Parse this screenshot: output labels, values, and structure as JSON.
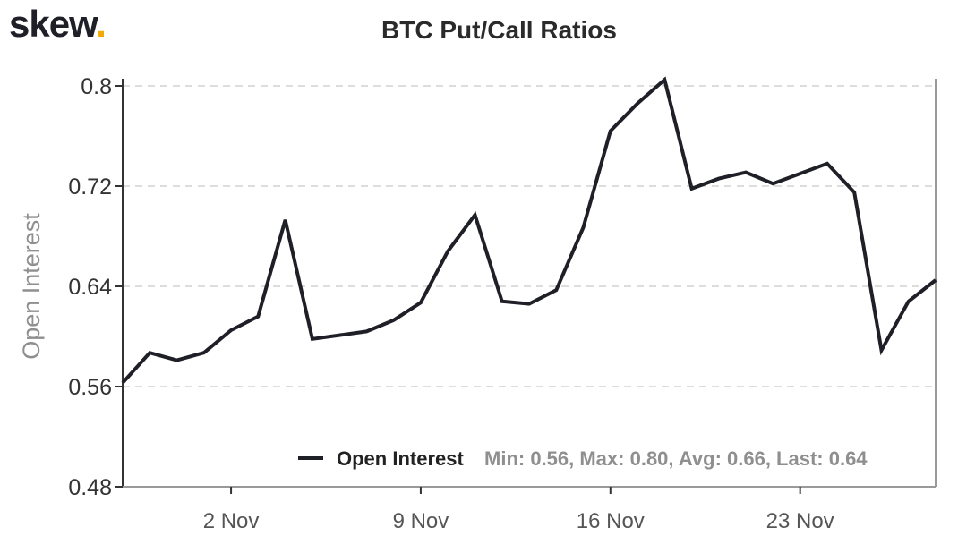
{
  "brand": {
    "name": "skew",
    "dot": "."
  },
  "chart_data": {
    "type": "line",
    "title": "BTC Put/Call Ratios",
    "xlabel": "",
    "ylabel": "Open Interest",
    "ylim": [
      0.48,
      0.8
    ],
    "yticks": [
      "0.8",
      "0.72",
      "0.64",
      "0.56",
      "0.48"
    ],
    "ytick_values": [
      0.8,
      0.72,
      0.64,
      0.56,
      0.48
    ],
    "xticks": [
      "2 Nov",
      "9 Nov",
      "16 Nov",
      "23 Nov"
    ],
    "xtick_dates": [
      "2020-11-02",
      "2020-11-09",
      "2020-11-16",
      "2020-11-23"
    ],
    "xlim": [
      "2020-10-29",
      "2020-11-28"
    ],
    "grid": "horizontal dashed",
    "line_color": "#1f1f28",
    "series": [
      {
        "name": "Open Interest",
        "x": [
          "2020-10-29",
          "2020-10-30",
          "2020-10-31",
          "2020-11-01",
          "2020-11-02",
          "2020-11-03",
          "2020-11-04",
          "2020-11-05",
          "2020-11-06",
          "2020-11-07",
          "2020-11-08",
          "2020-11-09",
          "2020-11-10",
          "2020-11-11",
          "2020-11-12",
          "2020-11-13",
          "2020-11-14",
          "2020-11-15",
          "2020-11-16",
          "2020-11-17",
          "2020-11-18",
          "2020-11-19",
          "2020-11-20",
          "2020-11-21",
          "2020-11-22",
          "2020-11-23",
          "2020-11-24",
          "2020-11-25",
          "2020-11-26",
          "2020-11-27",
          "2020-11-28"
        ],
        "values": [
          0.563,
          0.587,
          0.581,
          0.587,
          0.605,
          0.616,
          0.693,
          0.598,
          0.601,
          0.604,
          0.613,
          0.627,
          0.668,
          0.697,
          0.628,
          0.626,
          0.637,
          0.687,
          0.764,
          0.786,
          0.805,
          0.718,
          0.726,
          0.731,
          0.722,
          0.73,
          0.738,
          0.715,
          0.589,
          0.628,
          0.645
        ]
      }
    ],
    "legend": {
      "label": "Open Interest",
      "stats": "Min: 0.56, Max: 0.80, Avg: 0.66, Last: 0.64",
      "placement": "bottom-right"
    }
  }
}
